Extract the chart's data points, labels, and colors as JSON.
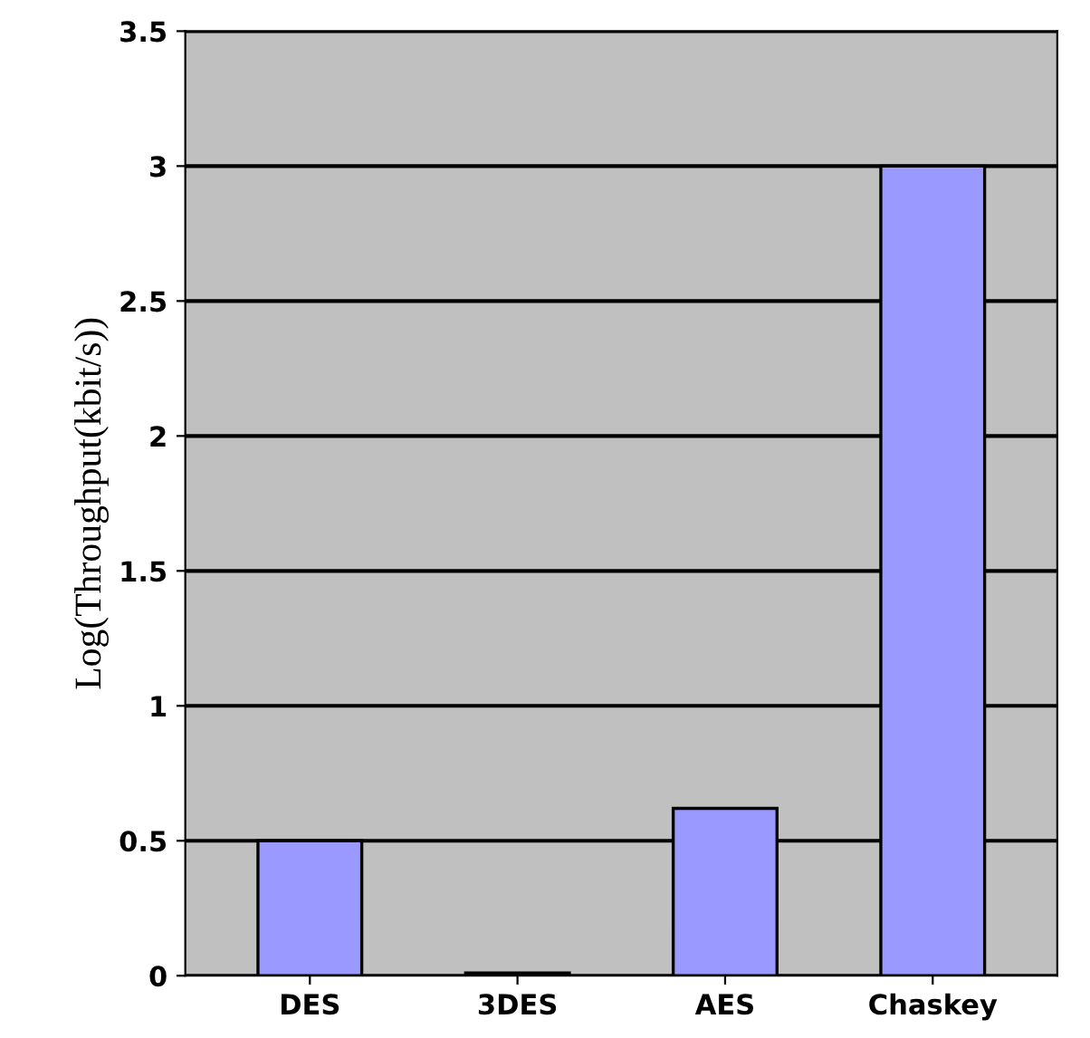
{
  "chart_data": {
    "type": "bar",
    "ylabel": "Log(Throughput(kbit/s))",
    "categories": [
      "DES",
      "3DES",
      "AES",
      "Chaskey"
    ],
    "values": [
      0.5,
      0.01,
      0.62,
      3.0
    ],
    "color": "#9999ff",
    "ylim": [
      0,
      3.5
    ],
    "yticks": [
      0,
      0.5,
      1,
      1.5,
      2,
      2.5,
      3,
      3.5
    ],
    "grid": "y"
  }
}
